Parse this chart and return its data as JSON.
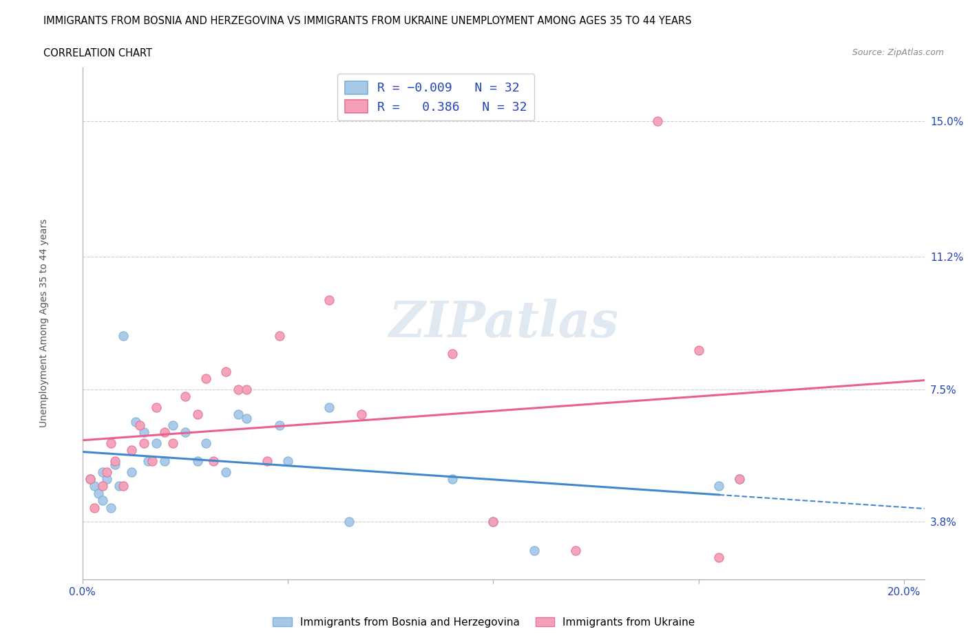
{
  "title_line1": "IMMIGRANTS FROM BOSNIA AND HERZEGOVINA VS IMMIGRANTS FROM UKRAINE UNEMPLOYMENT AMONG AGES 35 TO 44 YEARS",
  "title_line2": "CORRELATION CHART",
  "source_text": "Source: ZipAtlas.com",
  "ylabel": "Unemployment Among Ages 35 to 44 years",
  "xlim": [
    0.0,
    0.205
  ],
  "ylim": [
    0.022,
    0.165
  ],
  "ytick_positions": [
    0.038,
    0.075,
    0.112,
    0.15
  ],
  "ytick_labels": [
    "3.8%",
    "7.5%",
    "11.2%",
    "15.0%"
  ],
  "xtick_positions": [
    0.0,
    0.05,
    0.1,
    0.15,
    0.2
  ],
  "xtick_labels": [
    "0.0%",
    "",
    "",
    "",
    "20.0%"
  ],
  "r_bosnia": -0.009,
  "n_bosnia": 32,
  "r_ukraine": 0.386,
  "n_ukraine": 32,
  "color_bosnia": "#a8c8e8",
  "color_ukraine": "#f4a0b8",
  "color_bosnia_border": "#7ab0d8",
  "color_ukraine_border": "#e87090",
  "color_bosnia_line": "#4488cc",
  "color_ukraine_line": "#e86090",
  "color_text_blue": "#2244bb",
  "legend_label_bosnia": "Immigrants from Bosnia and Herzegovina",
  "legend_label_ukraine": "Immigrants from Ukraine",
  "bos_x": [
    0.002,
    0.003,
    0.004,
    0.005,
    0.005,
    0.006,
    0.007,
    0.008,
    0.009,
    0.01,
    0.012,
    0.013,
    0.015,
    0.016,
    0.018,
    0.02,
    0.022,
    0.025,
    0.028,
    0.03,
    0.035,
    0.038,
    0.04,
    0.048,
    0.05,
    0.06,
    0.065,
    0.09,
    0.1,
    0.11,
    0.155,
    0.16
  ],
  "bos_y": [
    0.05,
    0.048,
    0.046,
    0.052,
    0.044,
    0.05,
    0.042,
    0.054,
    0.048,
    0.09,
    0.052,
    0.066,
    0.063,
    0.055,
    0.06,
    0.055,
    0.065,
    0.063,
    0.055,
    0.06,
    0.052,
    0.068,
    0.067,
    0.065,
    0.055,
    0.07,
    0.038,
    0.05,
    0.038,
    0.03,
    0.048,
    0.05
  ],
  "ukr_x": [
    0.002,
    0.003,
    0.005,
    0.006,
    0.007,
    0.008,
    0.01,
    0.012,
    0.014,
    0.015,
    0.017,
    0.018,
    0.02,
    0.022,
    0.025,
    0.028,
    0.03,
    0.032,
    0.035,
    0.038,
    0.04,
    0.045,
    0.048,
    0.06,
    0.068,
    0.09,
    0.1,
    0.12,
    0.14,
    0.15,
    0.155,
    0.16
  ],
  "ukr_y": [
    0.05,
    0.042,
    0.048,
    0.052,
    0.06,
    0.055,
    0.048,
    0.058,
    0.065,
    0.06,
    0.055,
    0.07,
    0.063,
    0.06,
    0.073,
    0.068,
    0.078,
    0.055,
    0.08,
    0.075,
    0.075,
    0.055,
    0.09,
    0.1,
    0.068,
    0.085,
    0.038,
    0.03,
    0.15,
    0.086,
    0.028,
    0.05
  ]
}
